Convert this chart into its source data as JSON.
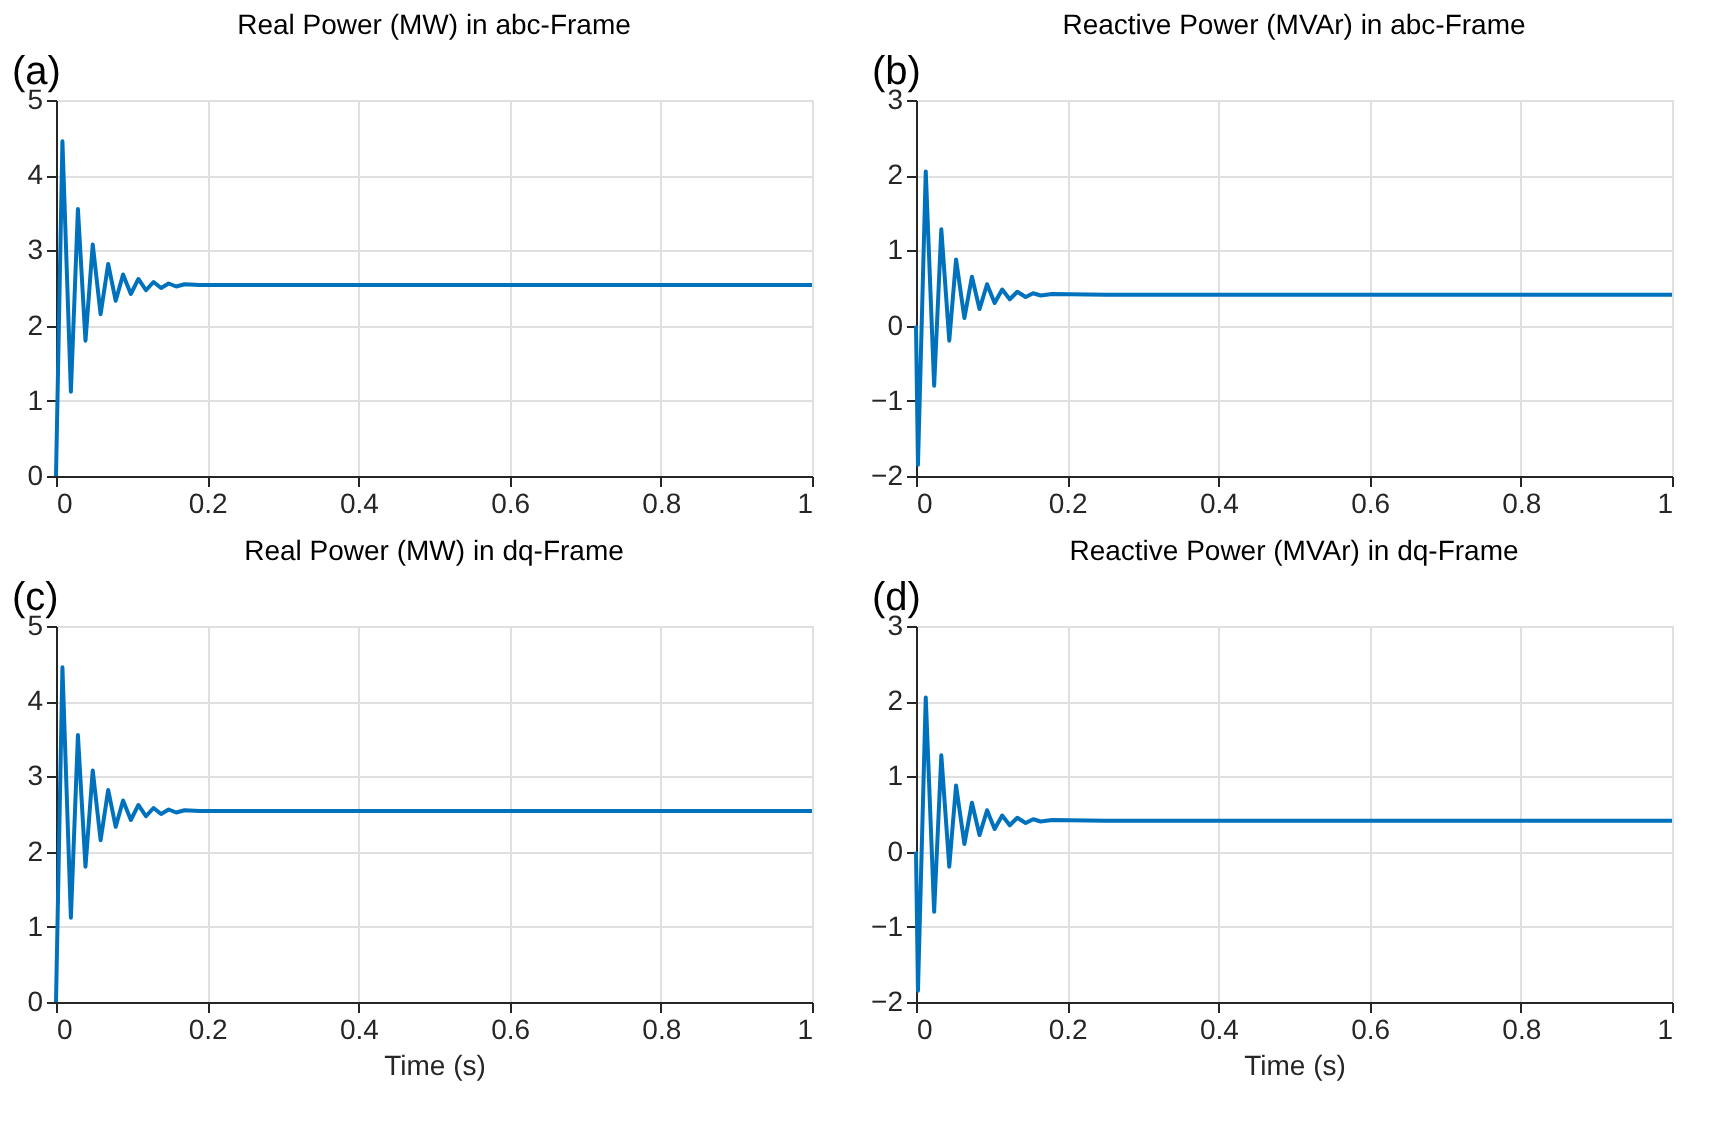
{
  "chart_data": [
    {
      "type": "line",
      "title": "Real Power (MW) in abc-Frame",
      "annotations": [
        "(a)"
      ],
      "xlim": [
        0,
        1
      ],
      "ylim": [
        0,
        5
      ],
      "xticks": [
        0,
        0.2,
        0.4,
        0.6,
        0.8,
        1
      ],
      "yticks": [
        0,
        1,
        2,
        3,
        4,
        5
      ],
      "grid": true,
      "x": [
        0,
        0.0085,
        0.0197,
        0.029,
        0.039,
        0.0486,
        0.059,
        0.069,
        0.079,
        0.0887,
        0.099,
        0.109,
        0.119,
        0.129,
        0.139,
        0.149,
        0.159,
        0.17,
        0.19,
        0.25,
        0.5,
        1
      ],
      "series": [
        {
          "color": "#0072bd",
          "values": [
            0,
            4.45,
            1.12,
            3.55,
            1.8,
            3.08,
            2.15,
            2.82,
            2.33,
            2.68,
            2.42,
            2.62,
            2.47,
            2.58,
            2.5,
            2.56,
            2.52,
            2.55,
            2.54,
            2.54,
            2.54,
            2.54
          ]
        }
      ]
    },
    {
      "type": "line",
      "title": "Reactive Power (MVAr) in abc-Frame",
      "annotations": [
        "(b)"
      ],
      "xlim": [
        0,
        1
      ],
      "ylim": [
        -2,
        3
      ],
      "xticks": [
        0,
        0.2,
        0.4,
        0.6,
        0.8,
        1
      ],
      "yticks": [
        -2,
        -1,
        0,
        1,
        2,
        3
      ],
      "grid": true,
      "x": [
        0,
        0.0026,
        0.0129,
        0.024,
        0.0335,
        0.044,
        0.053,
        0.064,
        0.074,
        0.084,
        0.094,
        0.104,
        0.114,
        0.124,
        0.134,
        0.145,
        0.155,
        0.165,
        0.18,
        0.25,
        0.5,
        1
      ],
      "series": [
        {
          "color": "#0072bd",
          "values": [
            0,
            -1.85,
            2.05,
            -0.8,
            1.28,
            -0.2,
            0.88,
            0.1,
            0.65,
            0.22,
            0.55,
            0.3,
            0.48,
            0.35,
            0.45,
            0.38,
            0.43,
            0.4,
            0.42,
            0.41,
            0.41,
            0.41
          ]
        }
      ]
    },
    {
      "type": "line",
      "title": "Real Power (MW) in dq-Frame",
      "annotations": [
        "(c)"
      ],
      "xlabel": "Time (s)",
      "xlim": [
        0,
        1
      ],
      "ylim": [
        0,
        5
      ],
      "xticks": [
        0,
        0.2,
        0.4,
        0.6,
        0.8,
        1
      ],
      "yticks": [
        0,
        1,
        2,
        3,
        4,
        5
      ],
      "grid": true,
      "x": [
        0,
        0.0085,
        0.0197,
        0.029,
        0.039,
        0.0486,
        0.059,
        0.069,
        0.079,
        0.0887,
        0.099,
        0.109,
        0.119,
        0.129,
        0.139,
        0.149,
        0.159,
        0.17,
        0.19,
        0.25,
        0.5,
        1
      ],
      "series": [
        {
          "color": "#0072bd",
          "values": [
            0,
            4.45,
            1.12,
            3.55,
            1.8,
            3.08,
            2.15,
            2.82,
            2.33,
            2.68,
            2.42,
            2.62,
            2.47,
            2.58,
            2.5,
            2.56,
            2.52,
            2.55,
            2.54,
            2.54,
            2.54,
            2.54
          ]
        }
      ]
    },
    {
      "type": "line",
      "title": "Reactive Power (MVAr) in dq-Frame",
      "annotations": [
        "(d)"
      ],
      "xlabel": "Time (s)",
      "xlim": [
        0,
        1
      ],
      "ylim": [
        -2,
        3
      ],
      "xticks": [
        0,
        0.2,
        0.4,
        0.6,
        0.8,
        1
      ],
      "yticks": [
        -2,
        -1,
        0,
        1,
        2,
        3
      ],
      "grid": true,
      "x": [
        0,
        0.0026,
        0.0129,
        0.024,
        0.0335,
        0.044,
        0.053,
        0.064,
        0.074,
        0.084,
        0.094,
        0.104,
        0.114,
        0.124,
        0.134,
        0.145,
        0.155,
        0.165,
        0.18,
        0.25,
        0.5,
        1
      ],
      "series": [
        {
          "color": "#0072bd",
          "values": [
            0,
            -1.85,
            2.05,
            -0.8,
            1.28,
            -0.2,
            0.88,
            0.1,
            0.65,
            0.22,
            0.55,
            0.3,
            0.48,
            0.35,
            0.45,
            0.38,
            0.43,
            0.4,
            0.42,
            0.41,
            0.41,
            0.41
          ]
        }
      ]
    }
  ]
}
